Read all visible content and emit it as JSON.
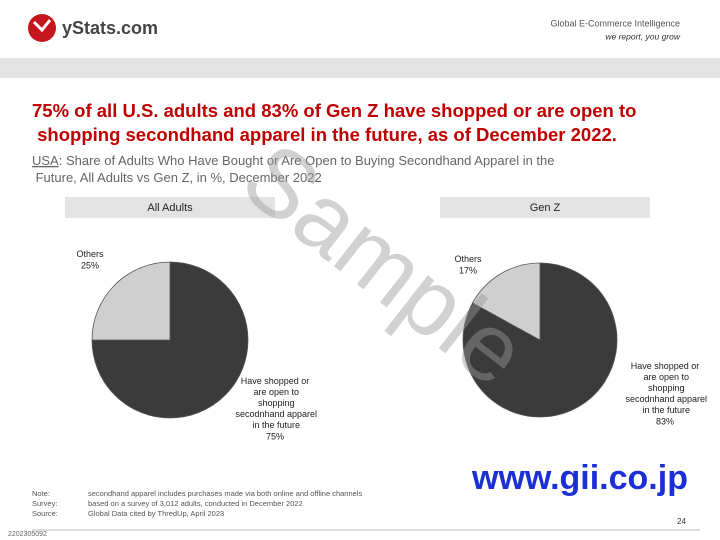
{
  "header": {
    "logo": "yStats.com",
    "tagline": "Global E-Commerce Intelligence",
    "motto": "we report, you grow"
  },
  "title": "75% of all U.S. adults and 83% of Gen Z have shopped or are open to shopping secondhand apparel in the future, as of December 2022.",
  "subtitle_region": "USA",
  "subtitle": ": Share of Adults Who Have Bought or Are Open to Buying Secondhand Apparel in the Future, All Adults vs Gen Z, in %, December 2022",
  "chart_data": [
    {
      "type": "pie",
      "title": "All Adults",
      "categories": [
        "Have shopped or are open to shopping secodnhand apparel in the future",
        "Others"
      ],
      "values": [
        75,
        25
      ],
      "value_labels": [
        "75%",
        "25%"
      ],
      "colors": [
        "#3b3b3b",
        "#cfcfcf"
      ]
    },
    {
      "type": "pie",
      "title": "Gen Z",
      "categories": [
        "Have shopped or are open to shopping secodnhand apparel in the future",
        "Others"
      ],
      "values": [
        83,
        17
      ],
      "value_labels": [
        "83%",
        "17%"
      ],
      "colors": [
        "#3b3b3b",
        "#cfcfcf"
      ]
    }
  ],
  "notes": [
    {
      "key": "Note:",
      "text": "secondhand apparel includes purchases made via both online and offline channels"
    },
    {
      "key": "Survey:",
      "text": "based on a survey of 3,012 adults, conducted in December 2022"
    },
    {
      "key": "Source:",
      "text": "Global Data cited by ThredUp, April 2023"
    }
  ],
  "page_number": "24",
  "doc_code": "2202305092",
  "watermark": "Sample",
  "site": "www.gii.co.jp"
}
